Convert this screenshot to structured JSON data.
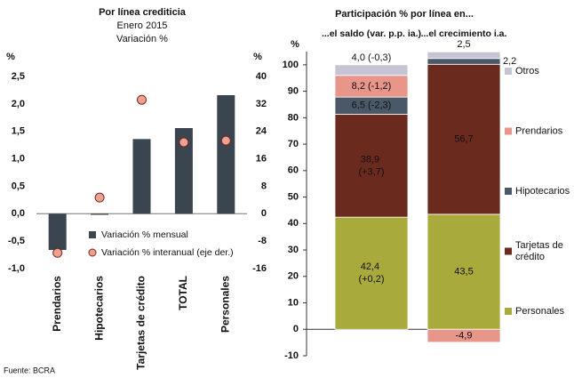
{
  "chart_data": [
    {
      "type": "bar",
      "title": "Por línea crediticia",
      "subtitle": [
        "Enero 2015",
        "Variación %"
      ],
      "y_unit": "%",
      "y2_unit": "%",
      "categories": [
        "Prendarios",
        "Hipotecarios",
        "Tarjetas de crédito",
        "TOTAL",
        "Personales"
      ],
      "series": [
        {
          "name": "Variación % mensual",
          "type": "bar",
          "color": "#3a4550",
          "values": [
            -0.66,
            -0.02,
            1.36,
            1.56,
            2.16
          ]
        },
        {
          "name": "Variación % interanual (eje der.)",
          "type": "scatter",
          "axis": "y2",
          "color": "#f0a090",
          "values": [
            -11.4,
            4.7,
            33.2,
            20.8,
            21.3
          ]
        }
      ],
      "ylim": [
        -1.0,
        2.5
      ],
      "yticks": [
        {
          "value": -1.0,
          "label": "-1,0"
        },
        {
          "value": -0.5,
          "label": "-0,5"
        },
        {
          "value": 0.0,
          "label": "0,0"
        },
        {
          "value": 0.5,
          "label": "0,5"
        },
        {
          "value": 1.0,
          "label": "1,0"
        },
        {
          "value": 1.5,
          "label": "1,5"
        },
        {
          "value": 2.0,
          "label": "2,0"
        },
        {
          "value": 2.5,
          "label": "2,5"
        }
      ],
      "y2lim": [
        -16,
        40
      ],
      "y2ticks": [
        -16,
        -8,
        0,
        8,
        16,
        24,
        32,
        40
      ],
      "source": "Fuente: BCRA"
    },
    {
      "type": "stacked_bar",
      "title": "Participación % por línea en...",
      "y_unit": "%",
      "categories": [
        "...el saldo (var. p.p. ia.)",
        "...el crecimiento i.a."
      ],
      "series": [
        {
          "name": "Personales",
          "color": "#a9aa3c",
          "values": [
            42.4,
            43.5
          ],
          "value_labels": [
            "42,4 (+0,2)",
            "43,5"
          ]
        },
        {
          "name": "Tarjetas de crédito",
          "color": "#6b2a1e",
          "values": [
            38.9,
            56.7
          ],
          "value_labels": [
            "38,9 (+3,7)",
            "56,7"
          ]
        },
        {
          "name": "Hipotecarios",
          "color": "#4a5868",
          "values": [
            6.5,
            2.2
          ],
          "value_labels": [
            "6,5 (-2,3)",
            "2,2"
          ]
        },
        {
          "name": "Prendarios",
          "color": "#e8968a",
          "values": [
            8.2,
            -4.9
          ],
          "value_labels": [
            "8,2 (-1,2)",
            "-4,9"
          ]
        },
        {
          "name": "Otros",
          "color": "#c4c4d4",
          "values": [
            4.0,
            2.5
          ],
          "value_labels": [
            "4,0 (-0,3)",
            "2,5"
          ]
        }
      ],
      "ylim": [
        -10,
        105
      ],
      "yticks": [
        -10,
        0,
        10,
        20,
        30,
        40,
        50,
        60,
        70,
        80,
        90,
        100
      ]
    }
  ]
}
